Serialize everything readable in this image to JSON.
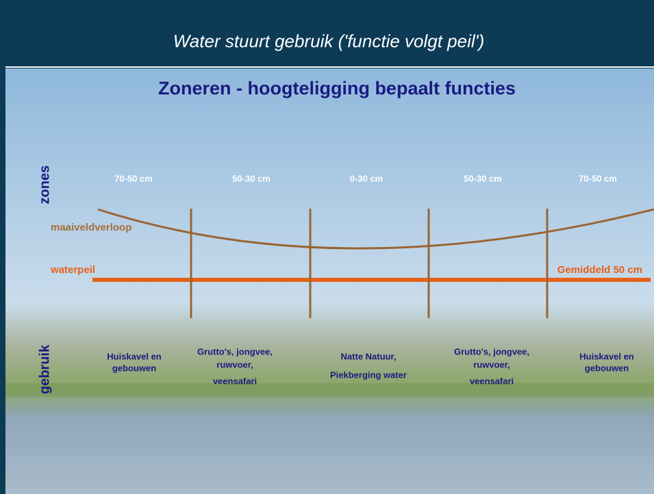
{
  "header": {
    "title": "Water stuurt gebruik ('functie volgt peil')"
  },
  "subtitle": "Zoneren - hoogteligging bepaalt functies",
  "side_labels": {
    "zones": "zones",
    "gebruik": "gebruik"
  },
  "zones": [
    "70-50 cm",
    "50-30 cm",
    "0-30 cm",
    "50-30 cm",
    "70-50 cm"
  ],
  "lines": {
    "maaiveld": "maaiveldverloop",
    "waterpeil": "waterpeil",
    "gemiddeld": "Gemiddeld 50 cm"
  },
  "uses": [
    [
      "Huiskavel en",
      "gebouwen"
    ],
    [
      "Grutto's, jongvee,",
      "ruwvoer,",
      "veensafari"
    ],
    [
      "Natte Natuur,",
      "Piekberging water"
    ],
    [
      "Grutto's, jongvee,",
      "ruwvoer,",
      "veensafari"
    ],
    [
      "Huiskavel en",
      "gebouwen"
    ]
  ]
}
